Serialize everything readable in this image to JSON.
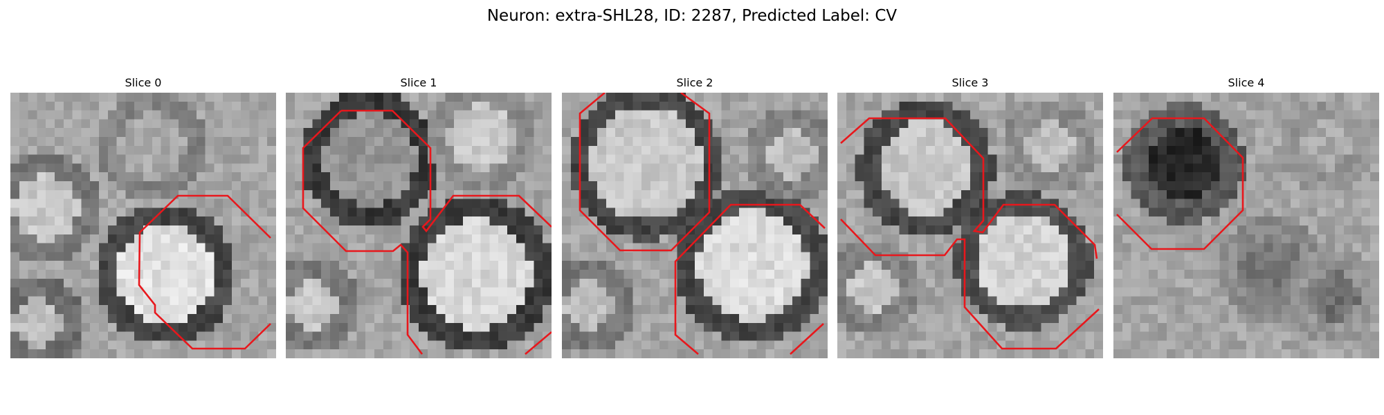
{
  "figure": {
    "title": "Neuron: extra-SHL28, ID: 2287, Predicted Label: CV",
    "contour_color": "#e8171c"
  },
  "slices": [
    {
      "title": "Slice 0"
    },
    {
      "title": "Slice 1"
    },
    {
      "title": "Slice 2"
    },
    {
      "title": "Slice 3"
    },
    {
      "title": "Slice 4"
    }
  ]
}
